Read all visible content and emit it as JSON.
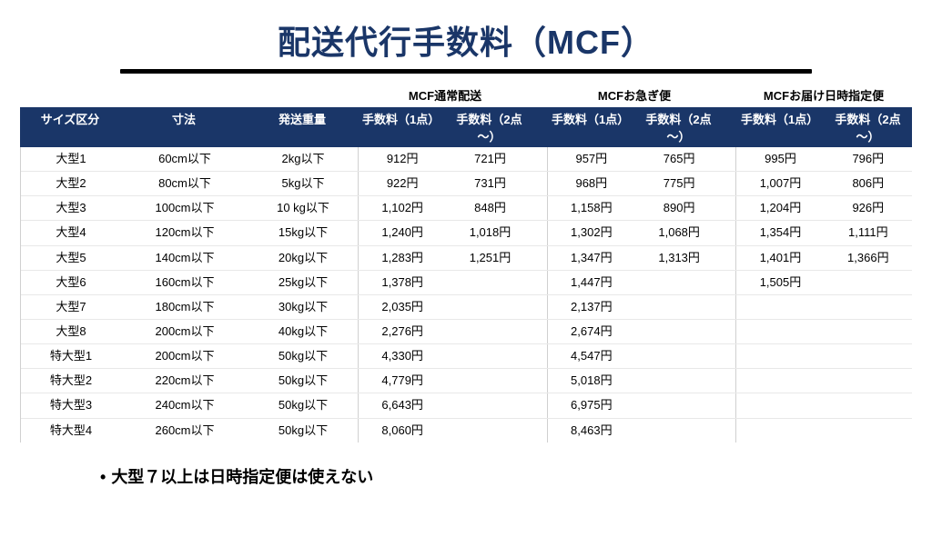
{
  "title": "配送代行手数料（MCF）",
  "groups": [
    "MCF通常配送",
    "MCFお急ぎ便",
    "MCFお届け日時指定便"
  ],
  "headers": {
    "size": "サイズ区分",
    "dim": "寸法",
    "weight": "発送重量",
    "fee1": "手数料（1点）",
    "fee2": "手数料（2点～）"
  },
  "rows": [
    {
      "size": "大型1",
      "dim": "60cm以下",
      "weight": "2kg以下",
      "a1": "912円",
      "a2": "721円",
      "b1": "957円",
      "b2": "765円",
      "c1": "995円",
      "c2": "796円"
    },
    {
      "size": "大型2",
      "dim": "80cm以下",
      "weight": "5kg以下",
      "a1": "922円",
      "a2": "731円",
      "b1": "968円",
      "b2": "775円",
      "c1": "1,007円",
      "c2": "806円"
    },
    {
      "size": "大型3",
      "dim": "100cm以下",
      "weight": "10 kg以下",
      "a1": "1,102円",
      "a2": "848円",
      "b1": "1,158円",
      "b2": "890円",
      "c1": "1,204円",
      "c2": "926円"
    },
    {
      "size": "大型4",
      "dim": "120cm以下",
      "weight": "15kg以下",
      "a1": "1,240円",
      "a2": "1,018円",
      "b1": "1,302円",
      "b2": "1,068円",
      "c1": "1,354円",
      "c2": "1,111円"
    },
    {
      "size": "大型5",
      "dim": "140cm以下",
      "weight": "20kg以下",
      "a1": "1,283円",
      "a2": "1,251円",
      "b1": "1,347円",
      "b2": "1,313円",
      "c1": "1,401円",
      "c2": "1,366円"
    },
    {
      "size": "大型6",
      "dim": "160cm以下",
      "weight": "25kg以下",
      "a1": "1,378円",
      "a2": "",
      "b1": "1,447円",
      "b2": "",
      "c1": "1,505円",
      "c2": ""
    },
    {
      "size": "大型7",
      "dim": "180cm以下",
      "weight": "30kg以下",
      "a1": "2,035円",
      "a2": "",
      "b1": "2,137円",
      "b2": "",
      "c1": "",
      "c2": ""
    },
    {
      "size": "大型8",
      "dim": "200cm以下",
      "weight": "40kg以下",
      "a1": "2,276円",
      "a2": "",
      "b1": "2,674円",
      "b2": "",
      "c1": "",
      "c2": ""
    },
    {
      "size": "特大型1",
      "dim": "200cm以下",
      "weight": "50kg以下",
      "a1": "4,330円",
      "a2": "",
      "b1": "4,547円",
      "b2": "",
      "c1": "",
      "c2": ""
    },
    {
      "size": "特大型2",
      "dim": "220cm以下",
      "weight": "50kg以下",
      "a1": "4,779円",
      "a2": "",
      "b1": "5,018円",
      "b2": "",
      "c1": "",
      "c2": ""
    },
    {
      "size": "特大型3",
      "dim": "240cm以下",
      "weight": "50kg以下",
      "a1": "6,643円",
      "a2": "",
      "b1": "6,975円",
      "b2": "",
      "c1": "",
      "c2": ""
    },
    {
      "size": "特大型4",
      "dim": "260cm以下",
      "weight": "50kg以下",
      "a1": "8,060円",
      "a2": "",
      "b1": "8,463円",
      "b2": "",
      "c1": "",
      "c2": ""
    }
  ],
  "note": "大型７以上は日時指定便は使えない"
}
